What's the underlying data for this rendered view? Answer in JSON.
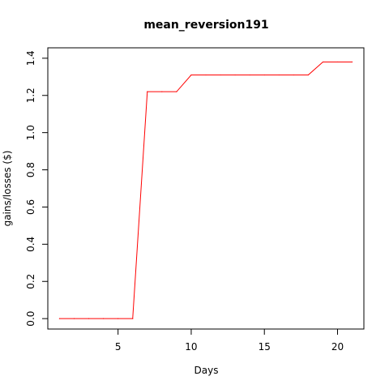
{
  "chart_data": {
    "type": "line",
    "title": "mean_reversion191",
    "xlabel": "Days",
    "ylabel": "gains/losses ($)",
    "x": [
      1,
      2,
      3,
      4,
      5,
      6,
      7,
      8,
      9,
      10,
      11,
      12,
      13,
      14,
      15,
      16,
      17,
      18,
      19,
      20,
      21
    ],
    "series": [
      {
        "color": "#ff0000",
        "values": [
          0,
          0,
          0,
          0,
          0,
          0,
          1.22,
          1.22,
          1.22,
          1.31,
          1.31,
          1.31,
          1.31,
          1.31,
          1.31,
          1.31,
          1.31,
          1.31,
          1.38,
          1.38,
          1.38
        ]
      }
    ],
    "xlim": [
      0.2,
      21.8
    ],
    "ylim": [
      -0.056,
      1.456
    ],
    "xticks": [
      5,
      10,
      15,
      20
    ],
    "yticks": [
      0.0,
      0.2,
      0.4,
      0.6,
      0.8,
      1.0,
      1.2,
      1.4
    ],
    "ytick_labels": [
      "0.0",
      "0.2",
      "0.4",
      "0.6",
      "0.8",
      "1.0",
      "1.2",
      "1.4"
    ],
    "grid": false
  }
}
